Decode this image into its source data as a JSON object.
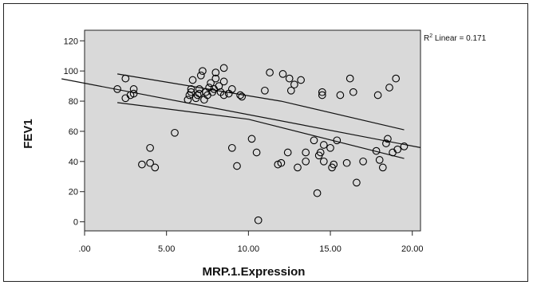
{
  "chart_data": {
    "type": "scatter",
    "xlabel": "MRP.1.Expression",
    "ylabel": "FEV1",
    "xlim": [
      0,
      20.5
    ],
    "ylim": [
      -6,
      127
    ],
    "x_ticks": [
      0,
      5,
      10,
      15,
      20
    ],
    "x_tick_labels": [
      ".00",
      "5.00",
      "10.00",
      "15.00",
      "20.00"
    ],
    "y_ticks": [
      0,
      20,
      40,
      60,
      80,
      100,
      120
    ],
    "y_tick_labels": [
      "0",
      "20",
      "40",
      "60",
      "80",
      "100",
      "120"
    ],
    "grid": false,
    "background_color": "#d9d9d9",
    "marker_color": "#000000",
    "annotation": {
      "r2_prefix": "R",
      "r2_sup": "2",
      "r2_rest": " Linear = 0.171"
    },
    "fit_line": {
      "x": [
        -1.4,
        20.5
      ],
      "y": [
        94.8,
        49.2
      ]
    },
    "ci_upper": {
      "x": [
        2.0,
        12.0,
        19.5
      ],
      "y": [
        98,
        80,
        61
      ]
    },
    "ci_lower": {
      "x": [
        2.0,
        10.0,
        19.5
      ],
      "y": [
        79,
        68,
        42
      ]
    },
    "points": [
      [
        2.0,
        88
      ],
      [
        2.5,
        95
      ],
      [
        2.5,
        82
      ],
      [
        2.8,
        84
      ],
      [
        3.0,
        85
      ],
      [
        3.0,
        88
      ],
      [
        3.5,
        38
      ],
      [
        4.0,
        49
      ],
      [
        4.0,
        39
      ],
      [
        4.3,
        36
      ],
      [
        5.5,
        59
      ],
      [
        6.3,
        81
      ],
      [
        6.4,
        84
      ],
      [
        6.5,
        86
      ],
      [
        6.5,
        88
      ],
      [
        6.6,
        94
      ],
      [
        6.8,
        82
      ],
      [
        6.9,
        84
      ],
      [
        7.0,
        85
      ],
      [
        7.0,
        88
      ],
      [
        7.1,
        97
      ],
      [
        7.2,
        100
      ],
      [
        7.3,
        81
      ],
      [
        7.4,
        86
      ],
      [
        7.5,
        84
      ],
      [
        7.6,
        89
      ],
      [
        7.7,
        92
      ],
      [
        7.8,
        86
      ],
      [
        7.9,
        88
      ],
      [
        8.0,
        95
      ],
      [
        8.0,
        99
      ],
      [
        8.2,
        90
      ],
      [
        8.3,
        86
      ],
      [
        8.5,
        84
      ],
      [
        8.5,
        93
      ],
      [
        8.5,
        102
      ],
      [
        8.8,
        85
      ],
      [
        9.0,
        49
      ],
      [
        9.0,
        88
      ],
      [
        9.3,
        37
      ],
      [
        9.5,
        84
      ],
      [
        9.6,
        83
      ],
      [
        10.2,
        55
      ],
      [
        10.5,
        46
      ],
      [
        10.6,
        1
      ],
      [
        11.0,
        87
      ],
      [
        11.3,
        99
      ],
      [
        11.8,
        38
      ],
      [
        12.0,
        39
      ],
      [
        12.1,
        98
      ],
      [
        12.4,
        46
      ],
      [
        12.5,
        95
      ],
      [
        12.6,
        87
      ],
      [
        12.8,
        91
      ],
      [
        13.0,
        36
      ],
      [
        13.2,
        94
      ],
      [
        13.5,
        46
      ],
      [
        13.5,
        40
      ],
      [
        14.0,
        54
      ],
      [
        14.2,
        19
      ],
      [
        14.3,
        44
      ],
      [
        14.4,
        46
      ],
      [
        14.5,
        84
      ],
      [
        14.5,
        86
      ],
      [
        14.6,
        40
      ],
      [
        14.6,
        51
      ],
      [
        15.0,
        49
      ],
      [
        15.1,
        36
      ],
      [
        15.2,
        38
      ],
      [
        15.4,
        54
      ],
      [
        15.6,
        84
      ],
      [
        16.0,
        39
      ],
      [
        16.2,
        95
      ],
      [
        16.4,
        86
      ],
      [
        16.6,
        26
      ],
      [
        17.0,
        40
      ],
      [
        17.8,
        47
      ],
      [
        17.9,
        84
      ],
      [
        18.0,
        41
      ],
      [
        18.2,
        36
      ],
      [
        18.4,
        52
      ],
      [
        18.5,
        55
      ],
      [
        18.6,
        89
      ],
      [
        18.8,
        46
      ],
      [
        19.0,
        95
      ],
      [
        19.1,
        48
      ],
      [
        19.5,
        50
      ]
    ]
  }
}
